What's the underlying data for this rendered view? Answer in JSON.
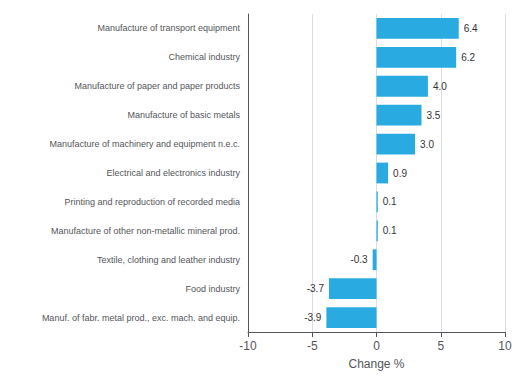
{
  "chart_data": {
    "type": "bar",
    "orientation": "horizontal",
    "categories": [
      "Manuf. of fabr. metal prod., exc. mach. and equip.",
      "Food industry",
      "Textile, clothing and leather industry",
      "Manufacture of other non-metallic mineral prod.",
      "Printing and reproduction of recorded media",
      "Electrical and electronics industry",
      "Manufacture of machinery and equipment n.e.c.",
      "Manufacture of basic metals",
      "Manufacture of paper and paper products",
      "Chemical industry",
      "Manufacture of transport equipment"
    ],
    "values": [
      -3.9,
      -3.7,
      -0.3,
      0.1,
      0.1,
      0.9,
      3.0,
      3.5,
      4.0,
      6.2,
      6.4
    ],
    "value_labels": [
      "-3.9",
      "-3.7",
      "-0.3",
      "0.1",
      "0.1",
      "0.9",
      "3.0",
      "3.5",
      "4.0",
      "6.2",
      "6.4"
    ],
    "data_labels": true,
    "color": "#29abe2",
    "xlabel": "Change %",
    "xlim": [
      -10,
      10
    ],
    "xticks": [
      -10,
      -5,
      0,
      5,
      10
    ],
    "grid": true
  }
}
